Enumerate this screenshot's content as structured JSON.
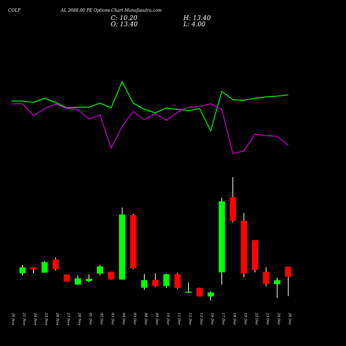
{
  "header": {
    "symbol": "COLP",
    "title": "AL 2680.00 PE Options Chart Munafasutra.com",
    "close_label": "C: 10.20",
    "open_label": "O: 13.40",
    "high_label": "H: 13.40",
    "low_label": "L: 4.00"
  },
  "colors": {
    "background": "#000000",
    "up": "#00ff00",
    "down": "#ff0000",
    "line_green": "#00ff00",
    "line_magenta": "#cc00cc",
    "wick": "#ffffff",
    "text": "#ffffff"
  },
  "chart_data": [
    {
      "type": "line",
      "title": "",
      "grid": false,
      "categories": [
        "20 Nov",
        "21 Nov",
        "24 Nov",
        "25 Nov",
        "26 Nov",
        "27 Nov",
        "28 Nov",
        "01 Dec",
        "02 Dec",
        "03 Dec",
        "04 Dec",
        "05 Dec",
        "08 Dec",
        "09 Dec",
        "10 Dec",
        "11 Dec",
        "12 Dec",
        "15 Dec",
        "16 Dec",
        "17 Dec",
        "18 Dec",
        "19 Dec",
        "22 Dec",
        "23 Dec",
        "24 Dec",
        "26 Dec"
      ],
      "series": [
        {
          "name": "",
          "color": "green",
          "values": [
            46,
            46,
            48,
            42,
            48,
            56,
            55,
            55,
            49,
            56,
            18,
            49,
            58,
            63,
            56,
            58,
            60,
            57,
            89,
            32,
            44,
            45,
            42,
            40,
            39,
            37
          ]
        },
        {
          "name": "",
          "color": "magenta",
          "values": [
            50,
            50,
            67,
            57,
            50,
            57,
            58,
            72,
            66,
            114,
            83,
            61,
            73,
            64,
            74,
            62,
            55,
            54,
            50,
            58,
            122,
            118,
            94,
            96,
            97,
            110
          ]
        }
      ]
    },
    {
      "type": "candlestick",
      "title": "",
      "categories": [
        "20 Nov",
        "21 Nov",
        "24 Nov",
        "25 Nov",
        "26 Nov",
        "27 Nov",
        "28 Nov",
        "01 Dec",
        "02 Dec",
        "03 Dec",
        "04 Dec",
        "05 Dec",
        "08 Dec",
        "09 Dec",
        "10 Dec",
        "11 Dec",
        "12 Dec",
        "15 Dec",
        "16 Dec",
        "17 Dec",
        "18 Dec",
        "19 Dec",
        "22 Dec",
        "23 Dec",
        "24 Dec",
        "26 Dec"
      ],
      "candles": [
        {
          "open": 11.3,
          "high": 13.9,
          "low": 10.6,
          "close": 13.2
        },
        {
          "open": 13.2,
          "high": 13.3,
          "low": 11.3,
          "close": 12.5
        },
        {
          "open": 11.5,
          "high": 15.2,
          "low": 11.5,
          "close": 14.9
        },
        {
          "open": 15.7,
          "high": 16.4,
          "low": 12.2,
          "close": 12.6
        },
        {
          "open": 10.9,
          "high": 10.9,
          "low": 8.6,
          "close": 8.6
        },
        {
          "open": 7.7,
          "high": 10.6,
          "low": 7.6,
          "close": 9.7
        },
        {
          "open": 8.8,
          "high": 10.9,
          "low": 8.4,
          "close": 9.5
        },
        {
          "open": 11.2,
          "high": 14.0,
          "low": 10.6,
          "close": 13.5
        },
        {
          "open": 11.8,
          "high": 11.8,
          "low": 9.2,
          "close": 9.3
        },
        {
          "open": 9.3,
          "high": 32.3,
          "low": 9.3,
          "close": 30.1
        },
        {
          "open": 29.9,
          "high": 30.3,
          "low": 12.6,
          "close": 12.9
        },
        {
          "open": 6.7,
          "high": 11.1,
          "low": 6.0,
          "close": 9.1
        },
        {
          "open": 9.2,
          "high": 11.3,
          "low": 7.0,
          "close": 7.2
        },
        {
          "open": 7.2,
          "high": 11.2,
          "low": 6.6,
          "close": 11.0
        },
        {
          "open": 11.0,
          "high": 11.4,
          "low": 6.3,
          "close": 6.6
        },
        {
          "open": 5.2,
          "high": 8.4,
          "low": 4.9,
          "close": 5.4
        },
        {
          "open": 6.6,
          "high": 6.7,
          "low": 3.9,
          "close": 3.9
        },
        {
          "open": 3.9,
          "high": 5.5,
          "low": 2.6,
          "close": 5.2
        },
        {
          "open": 11.6,
          "high": 35.5,
          "low": 7.7,
          "close": 34.3
        },
        {
          "open": 35.6,
          "high": 42.0,
          "low": 27.6,
          "close": 28.1
        },
        {
          "open": 28.1,
          "high": 30.6,
          "low": 10.0,
          "close": 11.3
        },
        {
          "open": 21.9,
          "high": 21.9,
          "low": 11.6,
          "close": 12.4
        },
        {
          "open": 11.7,
          "high": 13.3,
          "low": 7.2,
          "close": 7.9
        },
        {
          "open": 7.8,
          "high": 9.9,
          "low": 3.4,
          "close": 9.1
        },
        {
          "open": 13.4,
          "high": 13.4,
          "low": 4.0,
          "close": 10.2
        }
      ],
      "note_first_candle_index": 1
    }
  ]
}
